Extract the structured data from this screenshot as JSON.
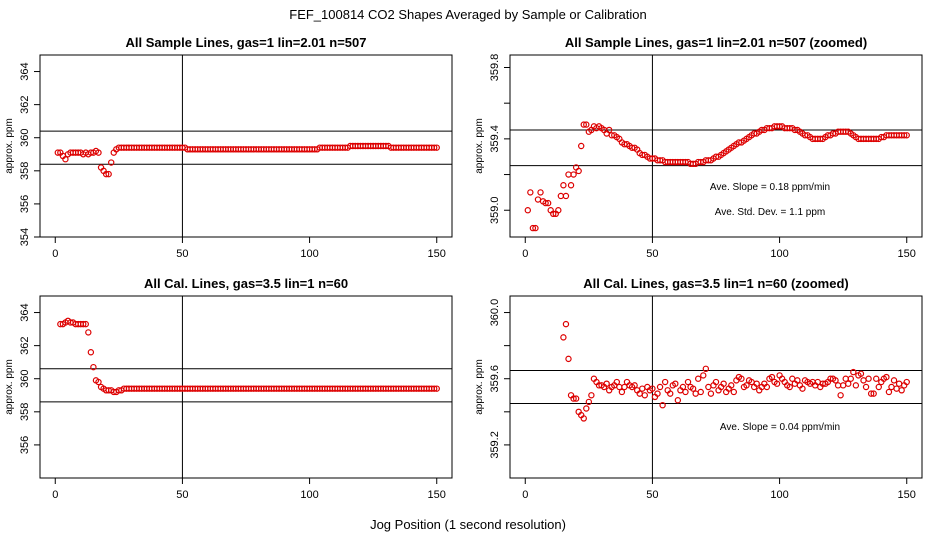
{
  "figure": {
    "title": "FEF_100814  CO2 Shapes Averaged by Sample or Calibration",
    "xlabel": "Jog Position (1 second resolution)",
    "point_color": "#dd0000",
    "line_color": "#000000"
  },
  "chart_data": [
    {
      "type": "scatter",
      "title": "All Sample Lines, gas=1 lin=2.01 n=507",
      "ylabel": "approx. ppm",
      "xlim": [
        -6,
        156
      ],
      "ylim": [
        354,
        365
      ],
      "xticks": [
        0,
        50,
        100,
        150
      ],
      "yticks": [
        354,
        356,
        358,
        360,
        362,
        364
      ],
      "vline": 50,
      "hlines": [
        358.4,
        360.4
      ],
      "annotations": [],
      "x": [
        1,
        2,
        3,
        4,
        5,
        6,
        7,
        8,
        9,
        10,
        11,
        12,
        13,
        14,
        15,
        16,
        17,
        18,
        19,
        20,
        21,
        22,
        23,
        24,
        25,
        26,
        27,
        28,
        29,
        30,
        31,
        32,
        33,
        34,
        35,
        36,
        37,
        38,
        39,
        40,
        41,
        42,
        43,
        44,
        45,
        46,
        47,
        48,
        49,
        50,
        51,
        52,
        53,
        54,
        55,
        56,
        57,
        58,
        59,
        60,
        61,
        62,
        63,
        64,
        65,
        66,
        67,
        68,
        69,
        70,
        71,
        72,
        73,
        74,
        75,
        76,
        77,
        78,
        79,
        80,
        81,
        82,
        83,
        84,
        85,
        86,
        87,
        88,
        89,
        90,
        91,
        92,
        93,
        94,
        95,
        96,
        97,
        98,
        99,
        100,
        101,
        102,
        103,
        104,
        105,
        106,
        107,
        108,
        109,
        110,
        111,
        112,
        113,
        114,
        115,
        116,
        117,
        118,
        119,
        120,
        121,
        122,
        123,
        124,
        125,
        126,
        127,
        128,
        129,
        130,
        131,
        132,
        133,
        134,
        135,
        136,
        137,
        138,
        139,
        140,
        141,
        142,
        143,
        144,
        145,
        146,
        147,
        148,
        149,
        150
      ],
      "y": [
        359.1,
        359.1,
        358.9,
        358.7,
        359.0,
        359.1,
        359.1,
        359.1,
        359.1,
        359.1,
        359.0,
        359.1,
        359.0,
        359.1,
        359.1,
        359.2,
        359.1,
        358.2,
        358.0,
        357.8,
        357.8,
        358.5,
        359.1,
        359.3,
        359.4,
        359.4,
        359.4,
        359.4,
        359.4,
        359.4,
        359.4,
        359.4,
        359.4,
        359.4,
        359.4,
        359.4,
        359.4,
        359.4,
        359.4,
        359.4,
        359.4,
        359.4,
        359.4,
        359.4,
        359.4,
        359.4,
        359.4,
        359.4,
        359.4,
        359.4,
        359.4,
        359.3,
        359.3,
        359.3,
        359.3,
        359.3,
        359.3,
        359.3,
        359.3,
        359.3,
        359.3,
        359.3,
        359.3,
        359.3,
        359.3,
        359.3,
        359.3,
        359.3,
        359.3,
        359.3,
        359.3,
        359.3,
        359.3,
        359.3,
        359.3,
        359.3,
        359.3,
        359.3,
        359.3,
        359.3,
        359.3,
        359.3,
        359.3,
        359.3,
        359.3,
        359.3,
        359.3,
        359.3,
        359.3,
        359.3,
        359.3,
        359.3,
        359.3,
        359.3,
        359.3,
        359.3,
        359.3,
        359.3,
        359.3,
        359.3,
        359.3,
        359.3,
        359.3,
        359.4,
        359.4,
        359.4,
        359.4,
        359.4,
        359.4,
        359.4,
        359.4,
        359.4,
        359.4,
        359.4,
        359.4,
        359.5,
        359.5,
        359.5,
        359.5,
        359.5,
        359.5,
        359.5,
        359.5,
        359.5,
        359.5,
        359.5,
        359.5,
        359.5,
        359.5,
        359.5,
        359.5,
        359.4,
        359.4,
        359.4,
        359.4,
        359.4,
        359.4,
        359.4,
        359.4,
        359.4,
        359.4,
        359.4,
        359.4,
        359.4,
        359.4,
        359.4,
        359.4,
        359.4,
        359.4,
        359.4
      ]
    },
    {
      "type": "scatter",
      "title": "All Sample Lines, gas=1 lin=2.01 n=507 (zoomed)",
      "ylabel": "approx. ppm",
      "xlim": [
        -6,
        156
      ],
      "ylim": [
        358.85,
        359.87
      ],
      "xticks": [
        0,
        50,
        100,
        150
      ],
      "yticks": [
        359.0,
        359.2,
        359.4,
        359.6,
        359.8
      ],
      "ytick_labels": [
        "359.0",
        "",
        "359.4",
        "",
        "359.8"
      ],
      "vline": 50,
      "hlines": [
        359.25,
        359.45
      ],
      "annotations": [
        "Ave. Slope =  0.18  ppm/min",
        "Ave. Std. Dev. =  1.1  ppm"
      ],
      "x": [
        1,
        2,
        3,
        4,
        5,
        6,
        7,
        8,
        9,
        10,
        11,
        12,
        13,
        14,
        15,
        16,
        17,
        18,
        19,
        20,
        21,
        22,
        23,
        24,
        25,
        26,
        27,
        28,
        29,
        30,
        31,
        32,
        33,
        34,
        35,
        36,
        37,
        38,
        39,
        40,
        41,
        42,
        43,
        44,
        45,
        46,
        47,
        48,
        49,
        50,
        51,
        52,
        53,
        54,
        55,
        56,
        57,
        58,
        59,
        60,
        61,
        62,
        63,
        64,
        65,
        66,
        67,
        68,
        69,
        70,
        71,
        72,
        73,
        74,
        75,
        76,
        77,
        78,
        79,
        80,
        81,
        82,
        83,
        84,
        85,
        86,
        87,
        88,
        89,
        90,
        91,
        92,
        93,
        94,
        95,
        96,
        97,
        98,
        99,
        100,
        101,
        102,
        103,
        104,
        105,
        106,
        107,
        108,
        109,
        110,
        111,
        112,
        113,
        114,
        115,
        116,
        117,
        118,
        119,
        120,
        121,
        122,
        123,
        124,
        125,
        126,
        127,
        128,
        129,
        130,
        131,
        132,
        133,
        134,
        135,
        136,
        137,
        138,
        139,
        140,
        141,
        142,
        143,
        144,
        145,
        146,
        147,
        148,
        149,
        150
      ],
      "y": [
        359.0,
        359.1,
        358.9,
        358.9,
        359.06,
        359.1,
        359.05,
        359.04,
        359.04,
        359.0,
        358.98,
        358.98,
        359.0,
        359.08,
        359.14,
        359.08,
        359.2,
        359.14,
        359.2,
        359.24,
        359.22,
        359.36,
        359.48,
        359.48,
        359.44,
        359.45,
        359.47,
        359.46,
        359.47,
        359.46,
        359.45,
        359.43,
        359.45,
        359.42,
        359.42,
        359.41,
        359.4,
        359.38,
        359.37,
        359.37,
        359.36,
        359.35,
        359.35,
        359.34,
        359.32,
        359.31,
        359.31,
        359.3,
        359.29,
        359.29,
        359.29,
        359.28,
        359.28,
        359.28,
        359.27,
        359.27,
        359.27,
        359.27,
        359.27,
        359.27,
        359.27,
        359.27,
        359.27,
        359.27,
        359.26,
        359.26,
        359.26,
        359.27,
        359.27,
        359.27,
        359.28,
        359.28,
        359.28,
        359.29,
        359.3,
        359.3,
        359.31,
        359.32,
        359.33,
        359.34,
        359.35,
        359.36,
        359.37,
        359.38,
        359.38,
        359.39,
        359.4,
        359.41,
        359.42,
        359.43,
        359.43,
        359.44,
        359.45,
        359.45,
        359.46,
        359.46,
        359.46,
        359.47,
        359.47,
        359.47,
        359.47,
        359.46,
        359.46,
        359.46,
        359.46,
        359.45,
        359.45,
        359.44,
        359.43,
        359.42,
        359.42,
        359.41,
        359.4,
        359.4,
        359.4,
        359.4,
        359.4,
        359.41,
        359.42,
        359.42,
        359.43,
        359.43,
        359.44,
        359.44,
        359.44,
        359.44,
        359.44,
        359.43,
        359.42,
        359.41,
        359.4,
        359.4,
        359.4,
        359.4,
        359.4,
        359.4,
        359.4,
        359.4,
        359.4,
        359.41,
        359.41,
        359.42,
        359.42,
        359.42,
        359.42,
        359.42,
        359.42,
        359.42,
        359.42,
        359.42
      ]
    },
    {
      "type": "scatter",
      "title": "All Cal. Lines, gas=3.5 lin=1 n=60",
      "ylabel": "approx. ppm",
      "xlim": [
        -6,
        156
      ],
      "ylim": [
        354,
        365
      ],
      "xticks": [
        0,
        50,
        100,
        150
      ],
      "yticks": [
        356,
        358,
        360,
        362,
        364
      ],
      "vline": 50,
      "hlines": [
        358.6,
        360.6
      ],
      "annotations": [],
      "x": [
        2,
        3,
        4,
        5,
        6,
        7,
        8,
        9,
        10,
        11,
        12,
        13,
        14,
        15,
        16,
        17,
        18,
        19,
        20,
        21,
        22,
        23,
        24,
        25,
        26,
        27,
        28,
        29,
        30,
        31,
        32,
        33,
        34,
        35,
        36,
        37,
        38,
        39,
        40,
        41,
        42,
        43,
        44,
        45,
        46,
        47,
        48,
        49,
        50,
        51,
        52,
        53,
        54,
        55,
        56,
        57,
        58,
        59,
        60,
        61,
        62,
        63,
        64,
        65,
        66,
        67,
        68,
        69,
        70,
        71,
        72,
        73,
        74,
        75,
        76,
        77,
        78,
        79,
        80,
        81,
        82,
        83,
        84,
        85,
        86,
        87,
        88,
        89,
        90,
        91,
        92,
        93,
        94,
        95,
        96,
        97,
        98,
        99,
        100,
        101,
        102,
        103,
        104,
        105,
        106,
        107,
        108,
        109,
        110,
        111,
        112,
        113,
        114,
        115,
        116,
        117,
        118,
        119,
        120,
        121,
        122,
        123,
        124,
        125,
        126,
        127,
        128,
        129,
        130,
        131,
        132,
        133,
        134,
        135,
        136,
        137,
        138,
        139,
        140,
        141,
        142,
        143,
        144,
        145,
        146,
        147,
        148,
        149,
        150
      ],
      "y": [
        363.3,
        363.3,
        363.4,
        363.5,
        363.4,
        363.4,
        363.3,
        363.3,
        363.3,
        363.3,
        363.3,
        362.8,
        361.6,
        360.7,
        359.9,
        359.8,
        359.5,
        359.4,
        359.3,
        359.3,
        359.3,
        359.2,
        359.2,
        359.3,
        359.3,
        359.4,
        359.4,
        359.4,
        359.4,
        359.4,
        359.4,
        359.4,
        359.4,
        359.4,
        359.4,
        359.4,
        359.4,
        359.4,
        359.4,
        359.4,
        359.4,
        359.4,
        359.4,
        359.4,
        359.4,
        359.4,
        359.4,
        359.4,
        359.4,
        359.4,
        359.4,
        359.4,
        359.4,
        359.4,
        359.4,
        359.4,
        359.4,
        359.4,
        359.4,
        359.4,
        359.4,
        359.4,
        359.4,
        359.4,
        359.4,
        359.4,
        359.4,
        359.4,
        359.4,
        359.4,
        359.4,
        359.4,
        359.4,
        359.4,
        359.4,
        359.4,
        359.4,
        359.4,
        359.4,
        359.4,
        359.4,
        359.4,
        359.4,
        359.4,
        359.4,
        359.4,
        359.4,
        359.4,
        359.4,
        359.4,
        359.4,
        359.4,
        359.4,
        359.4,
        359.4,
        359.4,
        359.4,
        359.4,
        359.4,
        359.4,
        359.4,
        359.4,
        359.4,
        359.4,
        359.4,
        359.4,
        359.4,
        359.4,
        359.4,
        359.4,
        359.4,
        359.4,
        359.4,
        359.4,
        359.4,
        359.4,
        359.4,
        359.4,
        359.4,
        359.4,
        359.4,
        359.4,
        359.4,
        359.4,
        359.4,
        359.4,
        359.4,
        359.4,
        359.4,
        359.4,
        359.4,
        359.4,
        359.4,
        359.4,
        359.4,
        359.4,
        359.4,
        359.4,
        359.4,
        359.4,
        359.4,
        359.4,
        359.4,
        359.4,
        359.4,
        359.4,
        359.4,
        359.4,
        359.4
      ]
    },
    {
      "type": "scatter",
      "title": "All Cal. Lines, gas=3.5 lin=1 n=60 (zoomed)",
      "ylabel": "approx. ppm",
      "xlim": [
        -6,
        156
      ],
      "ylim": [
        359.0,
        360.1
      ],
      "xticks": [
        0,
        50,
        100,
        150
      ],
      "yticks": [
        359.2,
        359.4,
        359.6,
        359.8,
        360.0
      ],
      "ytick_labels": [
        "359.2",
        "",
        "359.6",
        "",
        "360.0"
      ],
      "vline": 50,
      "hlines": [
        359.45,
        359.65
      ],
      "annotations": [
        "Ave. Slope =  0.04  ppm/min"
      ],
      "x": [
        15,
        16,
        17,
        18,
        19,
        20,
        21,
        22,
        23,
        24,
        25,
        26,
        27,
        28,
        29,
        30,
        31,
        32,
        33,
        34,
        35,
        36,
        37,
        38,
        39,
        40,
        41,
        42,
        43,
        44,
        45,
        46,
        47,
        48,
        49,
        50,
        51,
        52,
        53,
        54,
        55,
        56,
        57,
        58,
        59,
        60,
        61,
        62,
        63,
        64,
        65,
        66,
        67,
        68,
        69,
        70,
        71,
        72,
        73,
        74,
        75,
        76,
        77,
        78,
        79,
        80,
        81,
        82,
        83,
        84,
        85,
        86,
        87,
        88,
        89,
        90,
        91,
        92,
        93,
        94,
        95,
        96,
        97,
        98,
        99,
        100,
        101,
        102,
        103,
        104,
        105,
        106,
        107,
        108,
        109,
        110,
        111,
        112,
        113,
        114,
        115,
        116,
        117,
        118,
        119,
        120,
        121,
        122,
        123,
        124,
        125,
        126,
        127,
        128,
        129,
        130,
        131,
        132,
        133,
        134,
        135,
        136,
        137,
        138,
        139,
        140,
        141,
        142,
        143,
        144,
        145,
        146,
        147,
        148,
        149,
        150
      ],
      "y": [
        359.85,
        359.93,
        359.72,
        359.5,
        359.48,
        359.48,
        359.4,
        359.38,
        359.36,
        359.42,
        359.46,
        359.5,
        359.6,
        359.58,
        359.56,
        359.56,
        359.55,
        359.57,
        359.53,
        359.55,
        359.56,
        359.58,
        359.55,
        359.52,
        359.55,
        359.58,
        359.56,
        359.55,
        359.56,
        359.53,
        359.51,
        359.54,
        359.5,
        359.55,
        359.53,
        359.54,
        359.49,
        359.51,
        359.55,
        359.44,
        359.58,
        359.53,
        359.51,
        359.56,
        359.57,
        359.47,
        359.53,
        359.55,
        359.52,
        359.58,
        359.55,
        359.54,
        359.51,
        359.6,
        359.52,
        359.62,
        359.66,
        359.55,
        359.51,
        359.56,
        359.58,
        359.53,
        359.55,
        359.57,
        359.52,
        359.54,
        359.56,
        359.52,
        359.59,
        359.61,
        359.6,
        359.55,
        359.56,
        359.59,
        359.58,
        359.55,
        359.57,
        359.53,
        359.55,
        359.57,
        359.55,
        359.6,
        359.61,
        359.58,
        359.57,
        359.62,
        359.6,
        359.58,
        359.56,
        359.55,
        359.6,
        359.57,
        359.59,
        359.56,
        359.54,
        359.59,
        359.58,
        359.57,
        359.58,
        359.56,
        359.58,
        359.55,
        359.57,
        359.57,
        359.58,
        359.6,
        359.6,
        359.59,
        359.56,
        359.5,
        359.56,
        359.6,
        359.57,
        359.6,
        359.64,
        359.56,
        359.62,
        359.63,
        359.59,
        359.55,
        359.6,
        359.51,
        359.51,
        359.6,
        359.55,
        359.58,
        359.6,
        359.61,
        359.52,
        359.55,
        359.59,
        359.54,
        359.57,
        359.53,
        359.56,
        359.58
      ]
    }
  ]
}
